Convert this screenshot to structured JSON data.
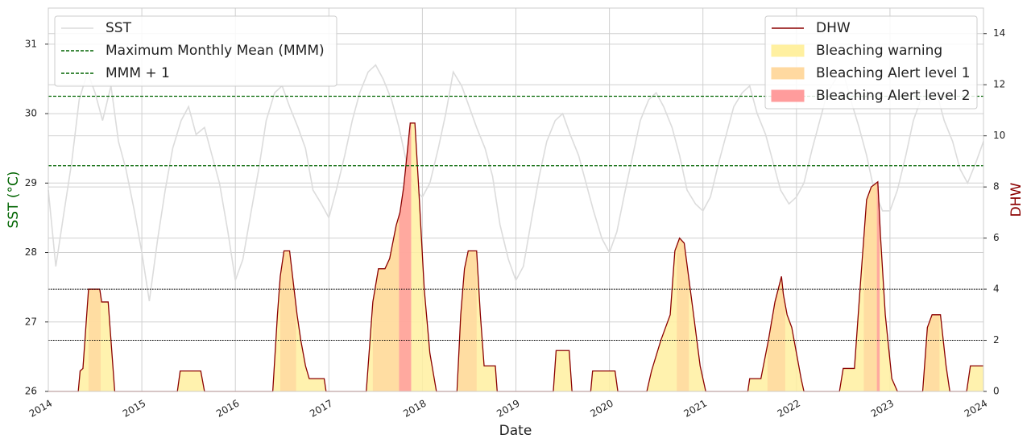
{
  "chart_data": {
    "type": "line",
    "xlabel": "Date",
    "ylabel": "SST (°C)",
    "ylabel_color": "#006400",
    "y2label": "DHW",
    "y2label_color": "#8b0000",
    "xlim": [
      2014,
      2024
    ],
    "xticks": [
      2014,
      2015,
      2016,
      2017,
      2018,
      2019,
      2020,
      2021,
      2022,
      2023,
      2024
    ],
    "ylim": [
      26,
      31.52
    ],
    "yticks": [
      26,
      27,
      28,
      29,
      30,
      31
    ],
    "y2lim": [
      0,
      15
    ],
    "y2ticks": [
      0,
      2,
      4,
      6,
      8,
      10,
      12,
      14
    ],
    "grid": true,
    "legend_loc": "upper left",
    "legend2_loc": "upper right",
    "series": [
      {
        "name": "SST",
        "color": "#dcdcdc",
        "x": [
          2014,
          2014.08,
          2014.17,
          2014.25,
          2014.33,
          2014.42,
          2014.5,
          2014.58,
          2014.67,
          2014.75,
          2014.83,
          2014.92,
          2015,
          2015.08,
          2015.17,
          2015.25,
          2015.33,
          2015.42,
          2015.5,
          2015.58,
          2015.67,
          2015.75,
          2015.83,
          2015.92,
          2016,
          2016.08,
          2016.17,
          2016.25,
          2016.33,
          2016.42,
          2016.5,
          2016.58,
          2016.67,
          2016.75,
          2016.83,
          2016.92,
          2017,
          2017.08,
          2017.17,
          2017.25,
          2017.33,
          2017.42,
          2017.5,
          2017.58,
          2017.67,
          2017.75,
          2017.83,
          2017.92,
          2018,
          2018.08,
          2018.17,
          2018.25,
          2018.33,
          2018.42,
          2018.5,
          2018.58,
          2018.67,
          2018.75,
          2018.83,
          2018.92,
          2019,
          2019.08,
          2019.17,
          2019.25,
          2019.33,
          2019.42,
          2019.5,
          2019.58,
          2019.67,
          2019.75,
          2019.83,
          2019.92,
          2020,
          2020.08,
          2020.17,
          2020.25,
          2020.33,
          2020.42,
          2020.5,
          2020.58,
          2020.67,
          2020.75,
          2020.83,
          2020.92,
          2021,
          2021.08,
          2021.17,
          2021.25,
          2021.33,
          2021.42,
          2021.5,
          2021.58,
          2021.67,
          2021.75,
          2021.83,
          2021.92,
          2022,
          2022.08,
          2022.17,
          2022.25,
          2022.33,
          2022.42,
          2022.5,
          2022.58,
          2022.67,
          2022.75,
          2022.83,
          2022.92,
          2023,
          2023.08,
          2023.17,
          2023.25,
          2023.33,
          2023.42,
          2023.5,
          2023.58,
          2023.67,
          2023.75,
          2023.83,
          2023.92,
          2024
        ],
        "values": [
          28.9,
          27.8,
          28.6,
          29.3,
          30.2,
          30.6,
          30.3,
          29.9,
          30.4,
          29.6,
          29.2,
          28.6,
          28.0,
          27.3,
          28.2,
          28.9,
          29.5,
          29.9,
          30.1,
          29.7,
          29.8,
          29.4,
          29.0,
          28.3,
          27.6,
          27.9,
          28.6,
          29.2,
          29.9,
          30.3,
          30.4,
          30.1,
          29.8,
          29.5,
          28.9,
          28.7,
          28.5,
          28.9,
          29.4,
          29.9,
          30.3,
          30.6,
          30.7,
          30.5,
          30.2,
          29.8,
          29.3,
          28.9,
          28.8,
          29.0,
          29.5,
          30.0,
          30.6,
          30.4,
          30.1,
          29.8,
          29.5,
          29.1,
          28.4,
          27.9,
          27.6,
          27.8,
          28.5,
          29.1,
          29.6,
          29.9,
          30.0,
          29.7,
          29.4,
          29.0,
          28.6,
          28.2,
          28.0,
          28.3,
          28.9,
          29.4,
          29.9,
          30.2,
          30.3,
          30.1,
          29.8,
          29.4,
          28.9,
          28.7,
          28.6,
          28.8,
          29.3,
          29.7,
          30.1,
          30.3,
          30.4,
          30.0,
          29.7,
          29.3,
          28.9,
          28.7,
          28.8,
          29.0,
          29.5,
          29.9,
          30.3,
          30.5,
          30.6,
          30.2,
          29.8,
          29.4,
          28.9,
          28.6,
          28.6,
          28.9,
          29.4,
          29.9,
          30.2,
          30.2,
          30.3,
          29.9,
          29.6,
          29.2,
          29.0,
          29.3,
          29.6
        ]
      },
      {
        "name": "DHW",
        "color": "#8b0000",
        "axis": "y2",
        "x": [
          2014,
          2014.32,
          2014.34,
          2014.37,
          2014.43,
          2014.55,
          2014.57,
          2014.64,
          2014.67,
          2014.71,
          2015.38,
          2015.41,
          2015.63,
          2015.67,
          2016.4,
          2016.45,
          2016.48,
          2016.52,
          2016.58,
          2016.66,
          2016.7,
          2016.75,
          2016.79,
          2016.95,
          2016.97,
          2017.4,
          2017.44,
          2017.47,
          2017.53,
          2017.6,
          2017.65,
          2017.72,
          2017.76,
          2017.8,
          2017.87,
          2017.92,
          2017.96,
          2018.02,
          2018.08,
          2018.15,
          2018.37,
          2018.41,
          2018.45,
          2018.49,
          2018.58,
          2018.62,
          2018.66,
          2018.78,
          2018.8,
          2019.4,
          2019.43,
          2019.57,
          2019.6,
          2019.8,
          2019.82,
          2020.06,
          2020.09,
          2020.4,
          2020.45,
          2020.55,
          2020.6,
          2020.65,
          2020.7,
          2020.75,
          2020.8,
          2020.9,
          2020.97,
          2021.03,
          2021.48,
          2021.5,
          2021.62,
          2021.7,
          2021.77,
          2021.84,
          2021.86,
          2021.9,
          2021.95,
          2022.0,
          2022.05,
          2022.08,
          2022.46,
          2022.5,
          2022.62,
          2022.68,
          2022.75,
          2022.8,
          2022.87,
          2022.9,
          2022.95,
          2023.02,
          2023.08,
          2023.35,
          2023.4,
          2023.45,
          2023.54,
          2023.6,
          2023.64,
          2023.82,
          2023.86,
          2024
        ],
        "values": [
          0,
          0,
          0.8,
          0.9,
          4,
          4,
          3.5,
          3.5,
          2,
          0,
          0,
          0.8,
          0.8,
          0,
          0,
          3,
          4.5,
          5.5,
          5.5,
          3,
          2,
          1,
          0.5,
          0.5,
          0,
          0,
          2,
          3.5,
          4.8,
          4.8,
          5.2,
          6.5,
          7,
          8,
          10.5,
          10.5,
          8,
          4,
          1.5,
          0,
          0,
          3,
          4.8,
          5.5,
          5.5,
          3,
          1,
          1,
          0,
          0,
          1.6,
          1.6,
          0,
          0,
          0.8,
          0.8,
          0,
          0,
          0.8,
          2,
          2.5,
          3,
          5.5,
          6,
          5.8,
          3,
          1,
          0,
          0,
          0.5,
          0.5,
          2,
          3.5,
          4.5,
          3.8,
          3,
          2.5,
          1.5,
          0.5,
          0,
          0,
          0.9,
          0.9,
          4,
          7.5,
          8,
          8.2,
          6,
          3,
          0.5,
          0,
          0,
          2.5,
          3,
          3,
          1,
          0,
          0,
          1,
          1
        ]
      }
    ],
    "reference_lines": [
      {
        "name": "Maximum Monthly Mean (MMM)",
        "value": 29.25,
        "color": "#006400"
      },
      {
        "name": "MMM + 1",
        "value": 30.25,
        "color": "#006400"
      }
    ],
    "y2_reference_lines": [
      2,
      4
    ],
    "fills": [
      {
        "name": "Bleaching warning",
        "color": "#fff0a0"
      },
      {
        "name": "Bleaching Alert level 1",
        "color": "#ffd9a0",
        "periods": [
          [
            2014.43,
            2014.56
          ],
          [
            2016.48,
            2016.65
          ],
          [
            2017.47,
            2017.75
          ],
          [
            2018.39,
            2018.58
          ],
          [
            2020.72,
            2020.85
          ],
          [
            2021.69,
            2021.88
          ],
          [
            2022.72,
            2022.86
          ],
          [
            2023.37,
            2023.53
          ]
        ]
      },
      {
        "name": "Bleaching Alert level 2",
        "color": "#ff9c9c",
        "periods": [
          [
            2017.75,
            2017.88
          ],
          [
            2022.86,
            2022.89
          ]
        ]
      }
    ]
  }
}
